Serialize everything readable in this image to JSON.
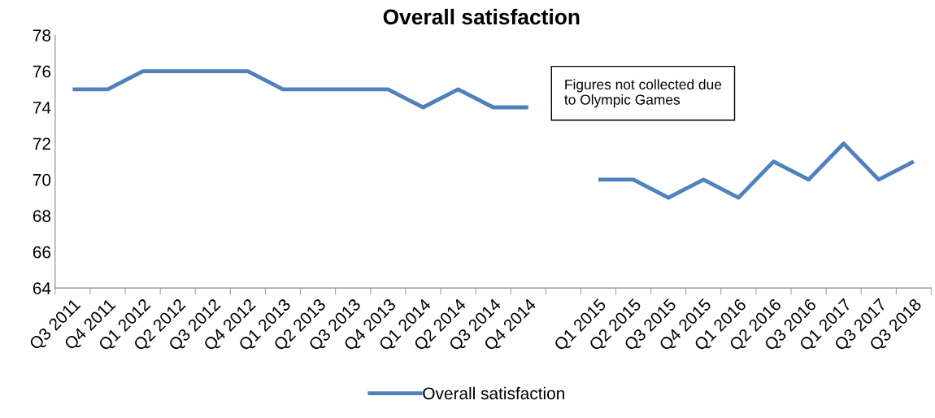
{
  "chart_data": {
    "type": "line",
    "title": "Overall satisfaction",
    "categories": [
      "Q3 2011",
      "Q4 2011",
      "Q1 2012",
      "Q2 2012",
      "Q3 2012",
      "Q4 2012",
      "Q1 2013",
      "Q2 2013",
      "Q3 2013",
      "Q4 2013",
      "Q1 2014",
      "Q2 2014",
      "Q3 2014",
      "Q4 2014",
      null,
      "Q1 2015",
      "Q2 2015",
      "Q3 2015",
      "Q4 2015",
      "Q1 2016",
      "Q2 2016",
      "Q3 2016",
      "Q1 2017",
      "Q3 2017",
      "Q3 2018"
    ],
    "series": [
      {
        "name": "Overall satisfaction",
        "color": "#4f81bd",
        "values": [
          75,
          75,
          76,
          76,
          76,
          76,
          75,
          75,
          75,
          75,
          74,
          75,
          74,
          74,
          null,
          70,
          70,
          69,
          70,
          69,
          71,
          70,
          72,
          70,
          71
        ]
      }
    ],
    "ylim": [
      64,
      78
    ],
    "yticks": [
      64,
      66,
      68,
      70,
      72,
      74,
      76,
      78
    ],
    "annotations": [
      "Figures not collected due\nto Olympic Games"
    ],
    "grid": false,
    "legend": "bottom",
    "marker": "none",
    "line_style": "solid"
  }
}
